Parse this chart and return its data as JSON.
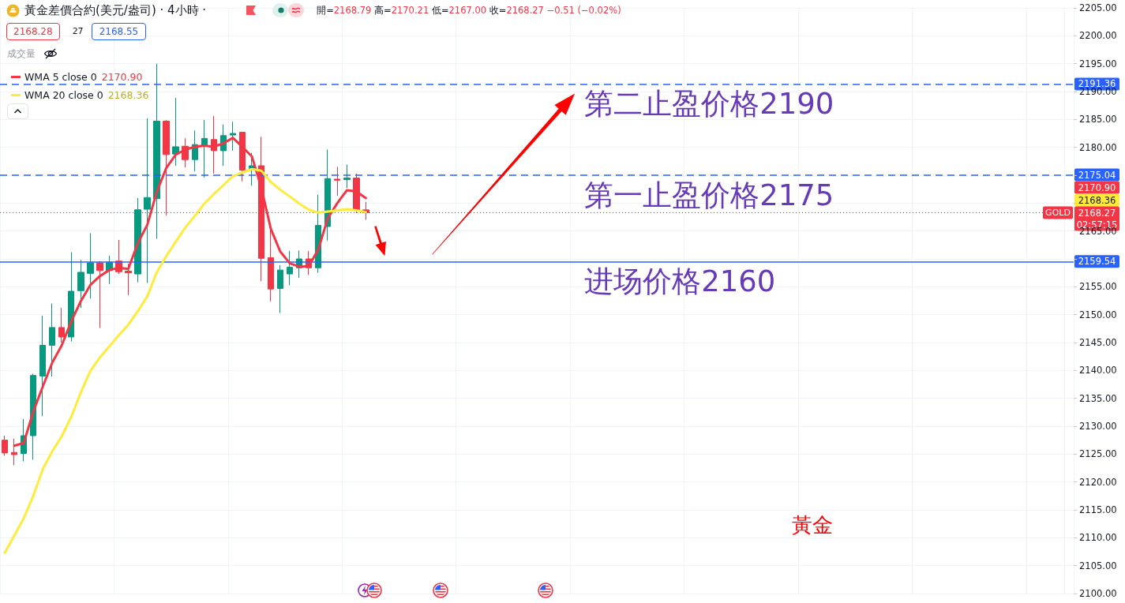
{
  "chart_data": {
    "type": "candlestick",
    "title": "黃金差價合約(美元/盎司) · 4小時 ·",
    "categories": [
      null,
      null,
      null,
      null,
      null,
      null,
      null,
      null,
      null,
      null,
      null,
      null,
      null,
      null,
      null,
      null,
      null,
      null,
      null,
      null,
      null,
      null,
      null,
      null,
      null,
      null,
      null,
      null,
      null,
      null,
      null,
      null,
      null,
      null,
      null,
      null,
      null,
      null,
      null,
      null,
      null,
      null,
      null,
      null,
      null,
      null,
      null,
      null,
      null,
      null,
      null,
      null,
      null,
      null,
      null,
      null,
      null,
      null,
      null,
      null,
      null,
      null,
      null,
      null,
      null,
      null,
      null,
      null,
      null,
      null,
      null,
      null,
      null,
      null,
      null,
      null,
      null,
      null,
      null,
      null,
      null,
      null,
      null,
      null,
      null,
      null,
      null,
      null,
      null,
      null,
      null,
      null,
      null,
      null,
      null,
      null,
      null,
      null,
      null,
      null,
      null,
      null,
      null,
      null,
      null,
      null,
      null,
      null,
      null,
      null,
      null,
      null,
      null
    ],
    "ohlc": [
      [
        2127.5,
        2128.3,
        2124.7,
        2125.2
      ],
      [
        2125.3,
        2127.8,
        2123.0,
        2124.9
      ],
      [
        2125.1,
        2131.3,
        2123.7,
        2128.3
      ],
      [
        2128.3,
        2139.4,
        2124.0,
        2139.1
      ],
      [
        2139.0,
        2149.8,
        2131.8,
        2144.5
      ],
      [
        2144.5,
        2152.0,
        2138.9,
        2147.7
      ],
      [
        2147.7,
        2151.2,
        2145.0,
        2146.0
      ],
      [
        2146.0,
        2161.2,
        2145.2,
        2154.2
      ],
      [
        2154.3,
        2159.8,
        2151.2,
        2157.6
      ],
      [
        2157.4,
        2164.6,
        2152.9,
        2159.3
      ],
      [
        2159.3,
        2159.6,
        2147.6,
        2157.9
      ],
      [
        2157.9,
        2160.6,
        2155.5,
        2159.4
      ],
      [
        2159.6,
        2163.4,
        2157.3,
        2157.7
      ],
      [
        2157.8,
        2159.1,
        2153.5,
        2157.5
      ],
      [
        2157.3,
        2170.9,
        2155.8,
        2168.8
      ],
      [
        2168.9,
        2185.2,
        2155.7,
        2171.0
      ],
      [
        2170.8,
        2195.0,
        2163.6,
        2184.7
      ],
      [
        2184.7,
        2184.9,
        2167.8,
        2178.7
      ],
      [
        2178.8,
        2188.9,
        2176.7,
        2180.1
      ],
      [
        2180.2,
        2181.6,
        2176.4,
        2177.8
      ],
      [
        2177.8,
        2183.0,
        2175.7,
        2180.5
      ],
      [
        2180.3,
        2184.9,
        2174.6,
        2181.6
      ],
      [
        2181.4,
        2185.6,
        2175.3,
        2179.4
      ],
      [
        2179.4,
        2184.1,
        2176.7,
        2182.1
      ],
      [
        2182.2,
        2184.6,
        2179.4,
        2182.5
      ],
      [
        2182.7,
        2182.7,
        2173.9,
        2175.9
      ],
      [
        2175.9,
        2179.0,
        2173.1,
        2176.7
      ],
      [
        2176.7,
        2181.9,
        2156.0,
        2160.1
      ],
      [
        2160.2,
        2166.3,
        2152.4,
        2154.6
      ],
      [
        2154.7,
        2158.9,
        2150.3,
        2158.0
      ],
      [
        2157.3,
        2161.4,
        2155.3,
        2158.5
      ],
      [
        2158.4,
        2161.5,
        2156.6,
        2160.0
      ],
      [
        2160.0,
        2161.4,
        2157.1,
        2158.4
      ],
      [
        2158.4,
        2171.5,
        2157.5,
        2166.0
      ],
      [
        2165.8,
        2179.6,
        2163.3,
        2174.4
      ],
      [
        2174.3,
        2176.5,
        2171.3,
        2174.1
      ],
      [
        2174.2,
        2176.9,
        2172.7,
        2174.5
      ],
      [
        2174.5,
        2175.3,
        2168.2,
        2168.7
      ],
      [
        2168.79,
        2170.21,
        2167.0,
        2168.27
      ],
      null,
      null,
      null,
      null,
      null,
      null,
      null,
      null,
      null,
      null,
      null,
      null,
      null,
      null,
      null,
      null,
      null,
      null,
      null,
      null,
      null,
      null,
      null,
      null,
      null,
      null,
      null,
      null,
      null,
      null,
      null,
      null,
      null,
      null,
      null,
      null,
      null,
      null,
      null,
      null,
      null,
      null,
      null,
      null,
      null,
      null,
      null,
      null,
      null,
      null,
      null,
      null,
      null,
      null,
      null,
      null,
      null,
      null,
      null,
      null,
      null,
      null,
      null,
      null,
      null,
      null,
      null,
      null,
      null,
      null,
      null,
      null,
      null,
      null
    ],
    "series": [
      {
        "type": "line",
        "name": "WMA 5 close 0",
        "color": "#f23645",
        "values": [
          null,
          2126.5,
          2127.0,
          2132.6,
          2137.1,
          2141.4,
          2144.5,
          2148.8,
          2152.4,
          2155.3,
          2156.9,
          2158.0,
          2158.4,
          2158.2,
          2162.8,
          2166.1,
          2172.0,
          2176.3,
          2178.7,
          2179.6,
          2180.1,
          2180.3,
          2180.1,
          2180.7,
          2181.7,
          2180.1,
          2178.4,
          2172.8,
          2165.4,
          2161.3,
          2159.2,
          2158.6,
          2158.7,
          2161.7,
          2167.3,
          2170.0,
          2172.3,
          2172.1,
          2170.9,
          null,
          null,
          null,
          null,
          null,
          null,
          null,
          null,
          null,
          null,
          null,
          null,
          null,
          null,
          null,
          null,
          null,
          null,
          null,
          null,
          null,
          null,
          null,
          null,
          null,
          null,
          null,
          null,
          null,
          null,
          null,
          null,
          null,
          null,
          null,
          null,
          null,
          null,
          null,
          null,
          null,
          null,
          null,
          null,
          null,
          null,
          null,
          null,
          null,
          null,
          null,
          null,
          null,
          null,
          null,
          null,
          null,
          null,
          null,
          null,
          null,
          null,
          null,
          null,
          null,
          null,
          null,
          null,
          null,
          null,
          null,
          null,
          null,
          null
        ]
      },
      {
        "type": "line",
        "name": "WMA 20 close 0",
        "color": "#ffeb3b",
        "values": [
          2107.3,
          2110.4,
          2113.5,
          2117.5,
          2122.3,
          2125.5,
          2128.2,
          2131.7,
          2136.0,
          2139.9,
          2142.3,
          2144.3,
          2146.3,
          2148.2,
          2150.6,
          2153.3,
          2157.6,
          2160.5,
          2163.1,
          2165.6,
          2167.7,
          2169.9,
          2171.6,
          2173.2,
          2174.8,
          2175.5,
          2176.1,
          2175.8,
          2173.8,
          2172.4,
          2171.2,
          2169.9,
          2168.8,
          2168.3,
          2168.5,
          2168.7,
          2168.9,
          2168.7,
          2168.4,
          null,
          null,
          null,
          null,
          null,
          null,
          null,
          null,
          null,
          null,
          null,
          null,
          null,
          null,
          null,
          null,
          null,
          null,
          null,
          null,
          null,
          null,
          null,
          null,
          null,
          null,
          null,
          null,
          null,
          null,
          null,
          null,
          null,
          null,
          null,
          null,
          null,
          null,
          null,
          null,
          null,
          null,
          null,
          null,
          null,
          null,
          null,
          null,
          null,
          null,
          null,
          null,
          null,
          null,
          null,
          null,
          null,
          null,
          null,
          null,
          null,
          null,
          null,
          null,
          null,
          null,
          null,
          null,
          null,
          null,
          null,
          null,
          null,
          null
        ]
      }
    ],
    "ylim": [
      2100,
      2205
    ],
    "yticks": [
      {
        "value": 2100,
        "label": "2100.00"
      },
      {
        "value": 2105,
        "label": "2105.00"
      },
      {
        "value": 2110,
        "label": "2110.00"
      },
      {
        "value": 2115,
        "label": "2115.00"
      },
      {
        "value": 2120,
        "label": "2120.00"
      },
      {
        "value": 2125,
        "label": "2125.00"
      },
      {
        "value": 2130,
        "label": "2130.00"
      },
      {
        "value": 2135,
        "label": "2135.00"
      },
      {
        "value": 2140,
        "label": "2140.00"
      },
      {
        "value": 2145,
        "label": "2145.00"
      },
      {
        "value": 2150,
        "label": "2150.00"
      },
      {
        "value": 2155,
        "label": "2155.00"
      },
      {
        "value": 2160,
        "label": null
      },
      {
        "value": 2165,
        "label": "2165.00"
      },
      {
        "value": 2170,
        "label": null
      },
      {
        "value": 2175,
        "label": null
      },
      {
        "value": 2180,
        "label": "2180.00"
      },
      {
        "value": 2185,
        "label": "2185.00"
      },
      {
        "value": 2190,
        "label": "2190.00"
      },
      {
        "value": 2195,
        "label": "2195.00"
      },
      {
        "value": 2200,
        "label": "2200.00"
      },
      {
        "value": 2205,
        "label": "2205.00"
      }
    ],
    "ref_lines": [
      {
        "axis": "y",
        "value": 2191.36,
        "label": "2191.36",
        "color": "#2962ff",
        "line_style": "dashed"
      },
      {
        "axis": "y",
        "value": 2175.04,
        "label": "2175.04",
        "color": "#2962ff",
        "line_style": "dashed"
      },
      {
        "axis": "y",
        "value": 2159.54,
        "label": "2159.54",
        "color": "#2962ff",
        "line_style": "solid"
      },
      {
        "axis": "y",
        "value": 2168.27,
        "label": "2168.27",
        "color": "#f23645",
        "line_style": "dotted"
      }
    ],
    "annotations": [
      "開=2168.79 高=2170.21 低=2167.00 收=2168.27 −0.51 (−0.02%)",
      "2168.28",
      "27",
      "2168.55",
      "成交量",
      "GOLD",
      "02:57:15",
      "黃金",
      {
        "text": "第二止盈价格2190",
        "y": 2191.36
      },
      {
        "text": "第一止盈价格2175",
        "y": 2175.04
      },
      {
        "text": "进场价格2160",
        "y": 2159.54
      },
      "2170.90",
      "2168.36",
      "2170.90",
      "2168.36"
    ],
    "grid": true,
    "legend": "top left",
    "marker": "none",
    "tick_labels": "y"
  }
}
